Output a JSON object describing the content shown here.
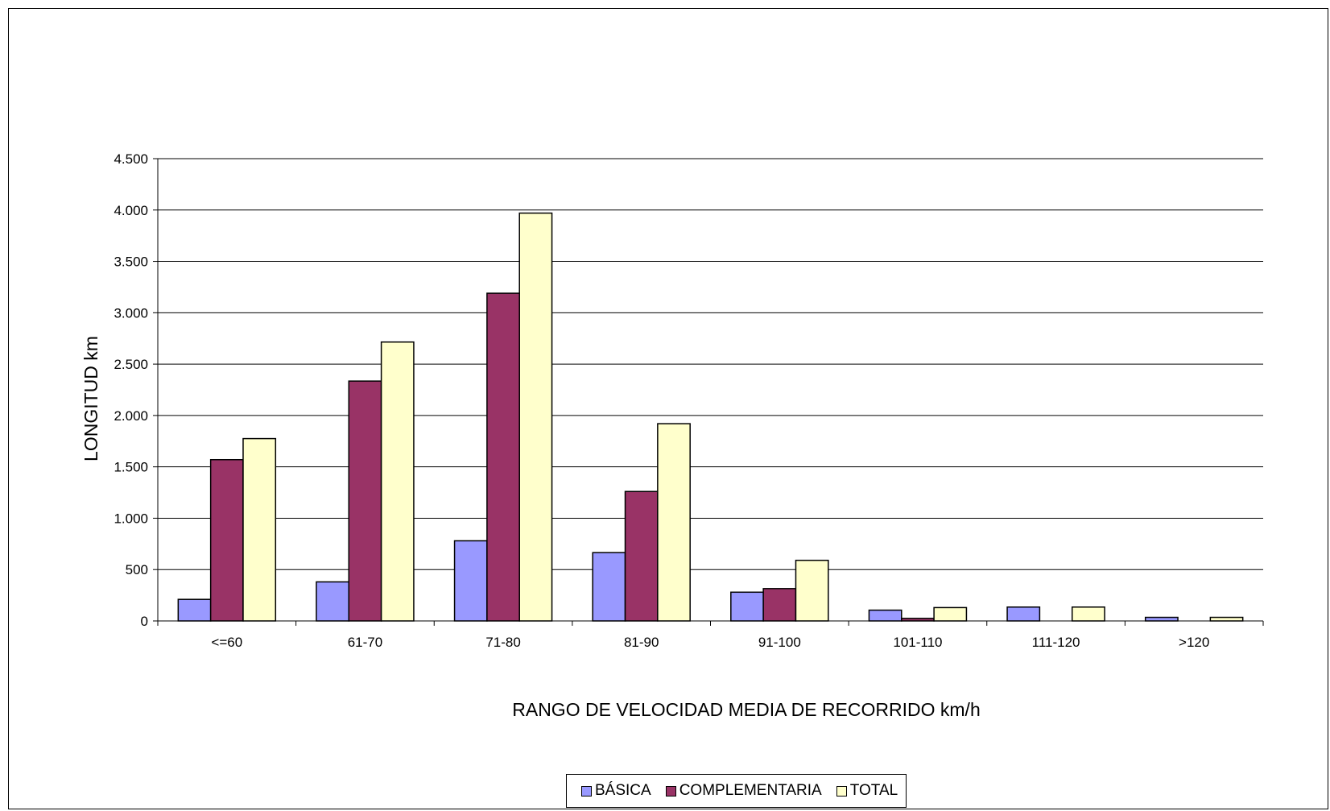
{
  "chart_data": {
    "type": "bar",
    "title": "",
    "xlabel": "RANGO DE VELOCIDAD MEDIA DE RECORRIDO km/h",
    "ylabel": "LONGITUD km",
    "categories": [
      "<=60",
      "61-70",
      "71-80",
      "81-90",
      "91-100",
      "101-110",
      "111-120",
      ">120"
    ],
    "series": [
      {
        "name": "BÁSICA",
        "color": "#9999FF",
        "values": [
          210,
          380,
          780,
          665,
          280,
          105,
          135,
          35
        ]
      },
      {
        "name": "COMPLEMENTARIA",
        "color": "#993366",
        "values": [
          1570,
          2335,
          3190,
          1260,
          315,
          25,
          0,
          0
        ]
      },
      {
        "name": "TOTAL",
        "color": "#FFFFCC",
        "values": [
          1775,
          2715,
          3970,
          1920,
          590,
          130,
          135,
          35
        ]
      }
    ],
    "ylim": [
      0,
      4500
    ],
    "yticks": [
      0,
      500,
      1000,
      1500,
      2000,
      2500,
      3000,
      3500,
      4000,
      4500
    ],
    "ytick_labels": [
      "0",
      "500",
      "1.000",
      "1.500",
      "2.000",
      "2.500",
      "3.000",
      "3.500",
      "4.000",
      "4.500"
    ],
    "grid": true,
    "legend_position": "bottom"
  }
}
